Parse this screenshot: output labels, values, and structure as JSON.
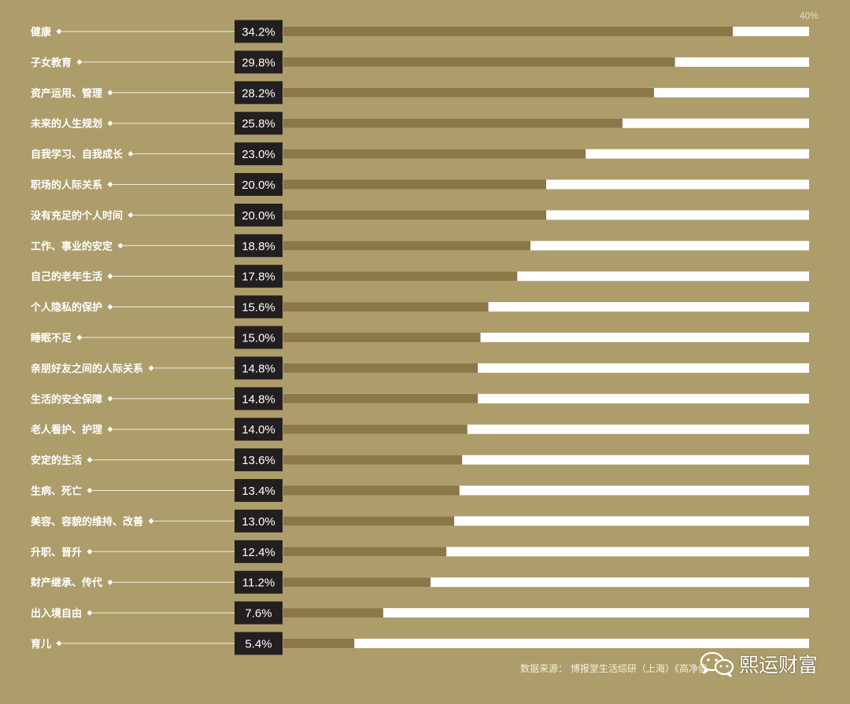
{
  "chart_data": {
    "type": "bar",
    "orientation": "horizontal",
    "title": "",
    "xlim": [
      0,
      40
    ],
    "axis_max_label": "40%",
    "categories": [
      "健康",
      "子女教育",
      "资产运用、管理",
      "未来的人生规划",
      "自我学习、自我成长",
      "职场的人际关系",
      "没有充足的个人时间",
      "工作、事业的安定",
      "自己的老年生活",
      "个人隐私的保护",
      "睡眠不足",
      "亲朋好友之间的人际关系",
      "生活的安全保障",
      "老人看护、护理",
      "安定的生活",
      "生病、死亡",
      "美容、容貌的维持、改善",
      "升职、晋升",
      "财产继承、传代",
      "出入境自由",
      "育儿"
    ],
    "values": [
      34.2,
      29.8,
      28.2,
      25.8,
      23.0,
      20.0,
      20.0,
      18.8,
      17.8,
      15.6,
      15.0,
      14.8,
      14.8,
      14.0,
      13.6,
      13.4,
      13.0,
      12.4,
      11.2,
      7.6,
      5.4
    ],
    "value_labels": [
      "34.2%",
      "29.8%",
      "28.2%",
      "25.8%",
      "23.0%",
      "20.0%",
      "20.0%",
      "18.8%",
      "17.8%",
      "15.6%",
      "15.0%",
      "14.8%",
      "14.8%",
      "14.0%",
      "13.6%",
      "13.4%",
      "13.0%",
      "12.4%",
      "11.2%",
      "7.6%",
      "5.4%"
    ],
    "grid": false,
    "legend": "none"
  },
  "colors": {
    "background": "#ad9d6a",
    "bar_fill": "#8b7748",
    "bar_track": "#ffffff",
    "value_box": "#231f20",
    "text": "#ffffff"
  },
  "footer": {
    "source_text": "数据来源： 博报堂生活综研（上海）《高净值",
    "watermark_text": "熙运财富",
    "watermark_icon": "wechat-icon"
  }
}
